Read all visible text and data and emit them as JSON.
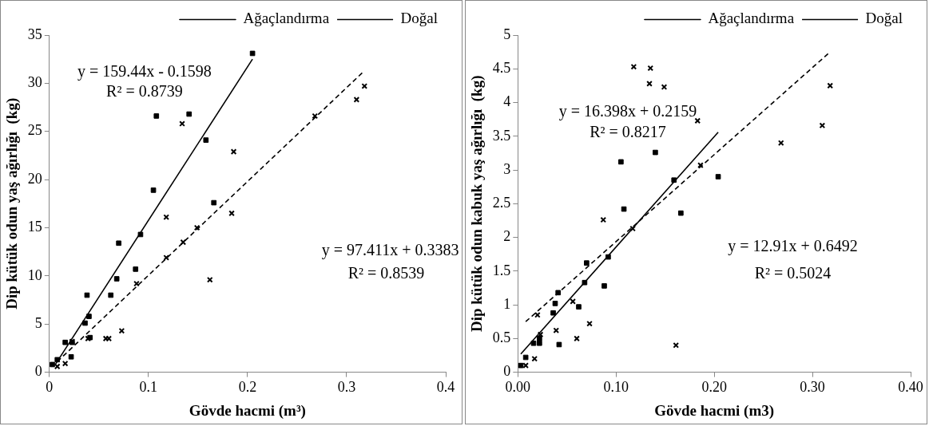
{
  "chart_data": [
    {
      "type": "scatter",
      "xlabel": "Gövde hacmi (m³)",
      "ylabel": "Dip kütük odun yaş ağırlığı  (kg)",
      "xlim": [
        0,
        0.4
      ],
      "xticks": [
        0,
        0.1,
        0.2,
        0.3,
        0.4
      ],
      "ylim": [
        0,
        35
      ],
      "yticks": [
        0,
        5,
        10,
        15,
        20,
        25,
        30,
        35
      ],
      "grid": false,
      "legend": "top",
      "series": [
        {
          "type": "scatter",
          "color": "#000000",
          "marker": "square",
          "x": [
            0.003,
            0.008,
            0.016,
            0.023,
            0.022,
            0.036,
            0.038,
            0.04,
            0.041,
            0.062,
            0.068,
            0.07,
            0.087,
            0.092,
            0.105,
            0.108,
            0.141,
            0.158,
            0.166,
            0.205
          ],
          "values": [
            0.8,
            1.3,
            3.1,
            3.1,
            1.6,
            5.1,
            8.0,
            5.8,
            3.6,
            8.0,
            9.7,
            13.4,
            10.7,
            14.3,
            18.9,
            26.6,
            26.8,
            24.1,
            17.6,
            33.1
          ]
        },
        {
          "type": "scatter",
          "color": "#000000",
          "marker": "cross",
          "x": [
            0.008,
            0.016,
            0.023,
            0.039,
            0.057,
            0.06,
            0.073,
            0.088,
            0.118,
            0.118,
            0.135,
            0.134,
            0.149,
            0.162,
            0.184,
            0.186,
            0.268,
            0.31,
            0.318
          ],
          "values": [
            0.6,
            0.9,
            3.2,
            3.5,
            3.5,
            3.5,
            4.3,
            9.2,
            11.9,
            16.1,
            13.5,
            25.8,
            15.0,
            9.6,
            16.5,
            22.9,
            26.6,
            28.3,
            29.7
          ]
        },
        {
          "type": "line",
          "name": "Ağaçlandırma",
          "color": "#000000",
          "marker": "none",
          "line_style": "solid",
          "x": [
            0.006,
            0.205
          ],
          "values": [
            0.8,
            32.5
          ]
        },
        {
          "type": "line",
          "name": "Doğal",
          "color": "#000000",
          "marker": "none",
          "line_style": "dashed",
          "x": [
            0.008,
            0.318
          ],
          "values": [
            1.1,
            31.3
          ]
        }
      ],
      "annotations": [
        "y = 159.44x - 0.1598",
        "R² = 0.8739",
        "y = 97.411x + 0.3383",
        "R² = 0.8539"
      ]
    },
    {
      "type": "scatter",
      "xlabel": "Gövde hacmi (m3)",
      "ylabel": "Dip kütük odun kabuk yaş ağırlığı  (kg)",
      "xlim": [
        0,
        0.4
      ],
      "xticks": [
        {
          "value": 0,
          "label": "0.00"
        },
        {
          "value": 0.1,
          "label": "0.10"
        },
        {
          "value": 0.2,
          "label": "0.20"
        },
        {
          "value": 0.3,
          "label": "0.30"
        },
        {
          "value": 0.4,
          "label": "0.40"
        }
      ],
      "ylim": [
        0,
        5
      ],
      "yticks": [
        0,
        0.5,
        1,
        1.5,
        2,
        2.5,
        3,
        3.5,
        4,
        4.5,
        5
      ],
      "grid": false,
      "legend": "top",
      "series": [
        {
          "type": "scatter",
          "color": "#000000",
          "marker": "square",
          "x": [
            0.003,
            0.008,
            0.016,
            0.022,
            0.022,
            0.042,
            0.036,
            0.038,
            0.041,
            0.062,
            0.068,
            0.07,
            0.088,
            0.092,
            0.105,
            0.108,
            0.14,
            0.159,
            0.166,
            0.204
          ],
          "values": [
            0.1,
            0.22,
            0.43,
            0.43,
            0.5,
            0.41,
            0.88,
            1.02,
            1.18,
            0.97,
            1.33,
            1.62,
            1.28,
            1.71,
            3.12,
            2.42,
            3.26,
            2.85,
            2.36,
            2.9
          ]
        },
        {
          "type": "scatter",
          "color": "#000000",
          "marker": "cross",
          "x": [
            0.008,
            0.017,
            0.023,
            0.02,
            0.039,
            0.056,
            0.06,
            0.073,
            0.087,
            0.117,
            0.118,
            0.135,
            0.134,
            0.149,
            0.183,
            0.186,
            0.161,
            0.268,
            0.31,
            0.318
          ],
          "values": [
            0.1,
            0.2,
            0.56,
            0.85,
            0.62,
            1.05,
            0.5,
            0.72,
            2.26,
            2.13,
            4.53,
            4.51,
            4.28,
            4.23,
            3.73,
            3.07,
            0.4,
            3.4,
            3.66,
            4.25
          ]
        },
        {
          "type": "line",
          "name": "Ağaçlandırma",
          "color": "#000000",
          "marker": "none",
          "line_style": "solid",
          "x": [
            0.003,
            0.204
          ],
          "values": [
            0.27,
            3.56
          ]
        },
        {
          "type": "line",
          "name": "Doğal",
          "color": "#000000",
          "marker": "none",
          "line_style": "dashed",
          "x": [
            0.008,
            0.318
          ],
          "values": [
            0.75,
            4.75
          ]
        }
      ],
      "annotations": [
        "y = 16.398x + 0.2159",
        "R² = 0.8217",
        "y = 12.91x + 0.6492",
        "R² = 0.5024"
      ]
    }
  ]
}
